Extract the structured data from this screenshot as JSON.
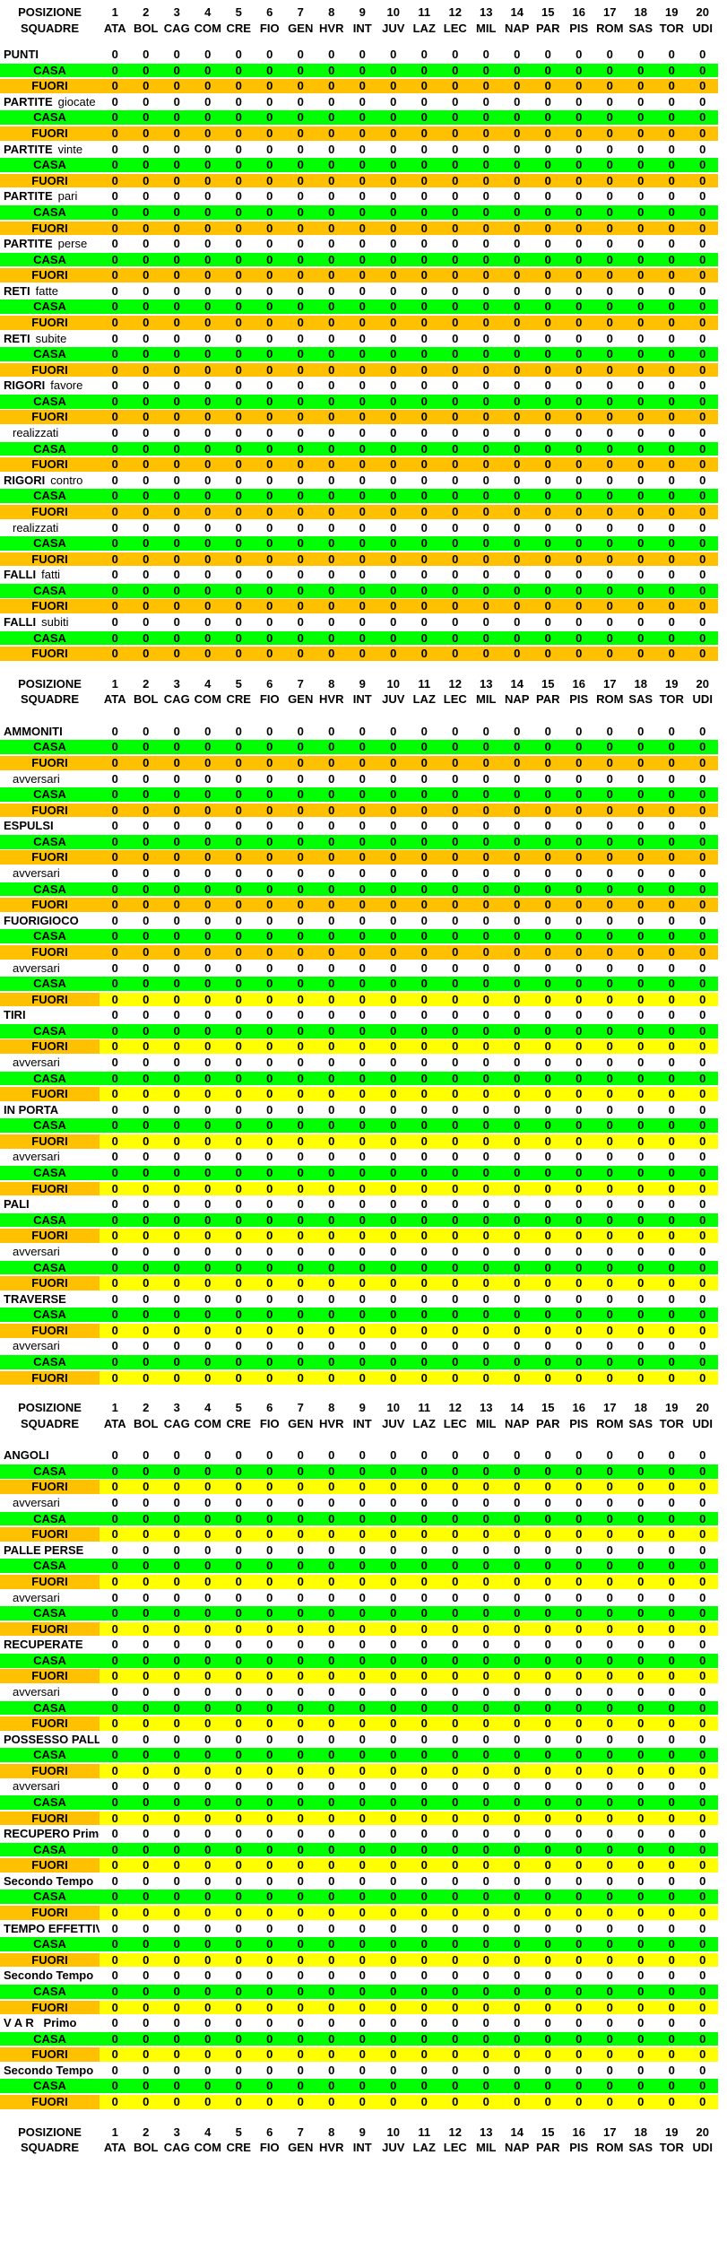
{
  "header": {
    "position_label": "POSIZIONE",
    "squadre_label": "SQUADRE",
    "positions": [
      "1",
      "2",
      "3",
      "4",
      "5",
      "6",
      "7",
      "8",
      "9",
      "10",
      "11",
      "12",
      "13",
      "14",
      "15",
      "16",
      "17",
      "18",
      "19",
      "20"
    ],
    "teams": [
      "ATA",
      "BOL",
      "CAG",
      "COM",
      "CRE",
      "FIO",
      "GEN",
      "HVR",
      "INT",
      "JUV",
      "LAZ",
      "LEC",
      "MIL",
      "NAP",
      "PAR",
      "PIS",
      "ROM",
      "SAS",
      "TOR",
      "UDI"
    ]
  },
  "labels": {
    "casa": "CASA",
    "fuori": "FUORI"
  },
  "cell_value": "0",
  "colors": {
    "casa_green": "#00FF00",
    "fuori_gold": "#FFC000",
    "fuori_yellow": "#FFFF00",
    "text": "#000000",
    "background": "#FFFFFF"
  },
  "sections": [
    {
      "name": "risultati",
      "groups": [
        {
          "bold": "PUNTI",
          "light": "",
          "indent": false,
          "fuori": "full"
        },
        {
          "bold": "PARTITE",
          "light": "giocate",
          "indent": false,
          "fuori": "full"
        },
        {
          "bold": "PARTITE",
          "light": "vinte",
          "indent": false,
          "fuori": "full"
        },
        {
          "bold": "PARTITE",
          "light": "pari",
          "indent": false,
          "fuori": "full"
        },
        {
          "bold": "PARTITE",
          "light": "perse",
          "indent": false,
          "fuori": "full"
        },
        {
          "bold": "RETI",
          "light": "fatte",
          "indent": false,
          "fuori": "full"
        },
        {
          "bold": "RETI",
          "light": "subite",
          "indent": false,
          "fuori": "full"
        },
        {
          "bold": "RIGORI",
          "light": "favore",
          "indent": false,
          "fuori": "full"
        },
        {
          "bold": "",
          "light": "realizzati",
          "indent": true,
          "fuori": "full"
        },
        {
          "bold": "RIGORI",
          "light": "contro",
          "indent": false,
          "fuori": "full"
        },
        {
          "bold": "",
          "light": "realizzati",
          "indent": true,
          "fuori": "full"
        },
        {
          "bold": "FALLI",
          "light": "fatti",
          "indent": false,
          "fuori": "full"
        },
        {
          "bold": "FALLI",
          "light": "subiti",
          "indent": false,
          "fuori": "full"
        }
      ]
    },
    {
      "name": "disciplina-tiri",
      "groups": [
        {
          "bold": "AMMONITI",
          "light": "",
          "indent": false,
          "fuori": "full"
        },
        {
          "bold": "",
          "light": "avversari",
          "indent": true,
          "fuori": "full"
        },
        {
          "bold": "ESPULSI",
          "light": "",
          "indent": false,
          "fuori": "full"
        },
        {
          "bold": "",
          "light": "avversari",
          "indent": true,
          "fuori": "full"
        },
        {
          "bold": "FUORIGIOCO",
          "light": "",
          "indent": false,
          "fuori": "full"
        },
        {
          "bold": "",
          "light": "avversari",
          "indent": true,
          "fuori": "split"
        },
        {
          "bold": "TIRI",
          "light": "",
          "indent": false,
          "fuori": "split"
        },
        {
          "bold": "",
          "light": "avversari",
          "indent": true,
          "fuori": "split"
        },
        {
          "bold": "IN PORTA",
          "light": "",
          "indent": false,
          "fuori": "split"
        },
        {
          "bold": "",
          "light": "avversari",
          "indent": true,
          "fuori": "split"
        },
        {
          "bold": "PALI",
          "light": "",
          "indent": false,
          "fuori": "split"
        },
        {
          "bold": "",
          "light": "avversari",
          "indent": true,
          "fuori": "split"
        },
        {
          "bold": "TRAVERSE",
          "light": "",
          "indent": false,
          "fuori": "split"
        },
        {
          "bold": "",
          "light": "avversari",
          "indent": true,
          "fuori": "split"
        }
      ]
    },
    {
      "name": "possesso-tempi",
      "groups": [
        {
          "bold": "ANGOLI",
          "light": "",
          "indent": false,
          "fuori": "split"
        },
        {
          "bold": "",
          "light": "avversari",
          "indent": true,
          "fuori": "split"
        },
        {
          "bold": "PALLE PERSE",
          "light": "",
          "indent": false,
          "fuori": "split"
        },
        {
          "bold": "",
          "light": "avversari",
          "indent": true,
          "fuori": "split"
        },
        {
          "bold": "RECUPERATE",
          "light": "",
          "indent": false,
          "fuori": "split"
        },
        {
          "bold": "",
          "light": "avversari",
          "indent": true,
          "fuori": "split"
        },
        {
          "bold": "POSSESSO PALLA",
          "light": "",
          "indent": false,
          "fuori": "split"
        },
        {
          "bold": "",
          "light": "avversari",
          "indent": true,
          "fuori": "split"
        },
        {
          "bold": "RECUPERO Primo",
          "light": "",
          "indent": false,
          "fuori": "split"
        },
        {
          "bold": "Secondo Tempo",
          "light": "",
          "indent": false,
          "fuori": "split"
        },
        {
          "bold": "TEMPO EFFETTIVO",
          "light": "",
          "indent": false,
          "fuori": "split"
        },
        {
          "bold": "Secondo Tempo",
          "light": "",
          "indent": false,
          "fuori": "split"
        },
        {
          "bold": "V A R   Primo",
          "light": "",
          "indent": false,
          "fuori": "split"
        },
        {
          "bold": "Secondo Tempo",
          "light": "",
          "indent": false,
          "fuori": "split"
        }
      ]
    }
  ]
}
